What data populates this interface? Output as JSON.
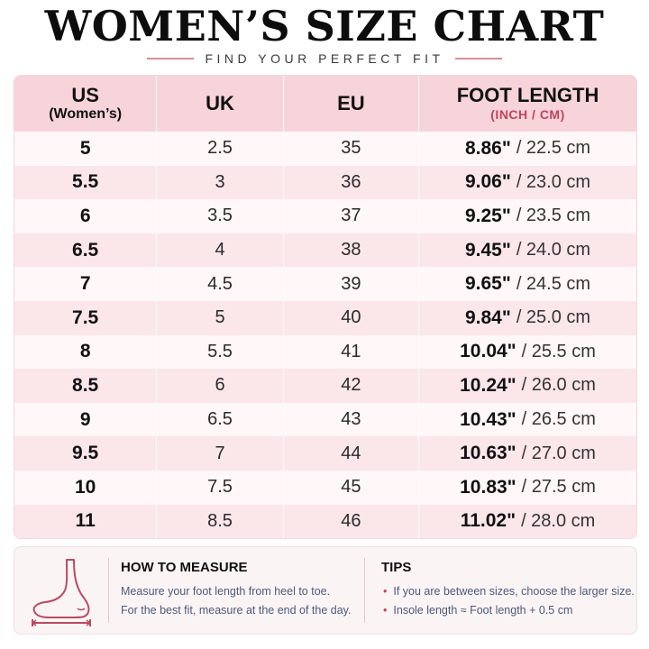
{
  "title": "WOMEN’S SIZE CHART",
  "subtitle": "FIND YOUR PERFECT FIT",
  "table": {
    "headers": {
      "us_main": "US",
      "us_sub": "(Women’s)",
      "uk": "UK",
      "eu": "EU",
      "foot_main": "FOOT LENGTH",
      "foot_sub": "(INCH / CM)"
    },
    "rows": [
      {
        "us": "5",
        "uk": "2.5",
        "eu": "35",
        "inch": "8.86\"",
        "cm": "/ 22.5 cm"
      },
      {
        "us": "5.5",
        "uk": "3",
        "eu": "36",
        "inch": "9.06\"",
        "cm": "/ 23.0 cm"
      },
      {
        "us": "6",
        "uk": "3.5",
        "eu": "37",
        "inch": "9.25\"",
        "cm": "/ 23.5 cm"
      },
      {
        "us": "6.5",
        "uk": "4",
        "eu": "38",
        "inch": "9.45\"",
        "cm": "/ 24.0 cm"
      },
      {
        "us": "7",
        "uk": "4.5",
        "eu": "39",
        "inch": "9.65\"",
        "cm": "/ 24.5 cm"
      },
      {
        "us": "7.5",
        "uk": "5",
        "eu": "40",
        "inch": "9.84\"",
        "cm": "/ 25.0 cm"
      },
      {
        "us": "8",
        "uk": "5.5",
        "eu": "41",
        "inch": "10.04\"",
        "cm": "/ 25.5 cm"
      },
      {
        "us": "8.5",
        "uk": "6",
        "eu": "42",
        "inch": "10.24\"",
        "cm": "/ 26.0 cm"
      },
      {
        "us": "9",
        "uk": "6.5",
        "eu": "43",
        "inch": "10.43\"",
        "cm": "/ 26.5 cm"
      },
      {
        "us": "9.5",
        "uk": "7",
        "eu": "44",
        "inch": "10.63\"",
        "cm": "/ 27.0 cm"
      },
      {
        "us": "10",
        "uk": "7.5",
        "eu": "45",
        "inch": "10.83\"",
        "cm": "/ 27.5 cm"
      },
      {
        "us": "11",
        "uk": "8.5",
        "eu": "46",
        "inch": "11.02\"",
        "cm": "/ 28.0 cm"
      }
    ]
  },
  "how_to_measure": {
    "title": "HOW TO MEASURE",
    "lines": [
      "Measure your foot length from heel to toe.",
      "For the best fit, measure at the end of the day."
    ]
  },
  "tips": {
    "title": "TIPS",
    "items": [
      "If you are between sizes, choose the larger size.",
      "Insole length ≈ Foot length + 0.5 cm"
    ]
  },
  "colors": {
    "accent_pink": "#c0455a",
    "header_bg": "#f7d3da",
    "row_odd": "#fff7f8",
    "row_even": "#fbe6ea",
    "body_text": "#4c5a78"
  },
  "icons": [
    "foot-measure-icon",
    "bullet-dot-icon"
  ]
}
